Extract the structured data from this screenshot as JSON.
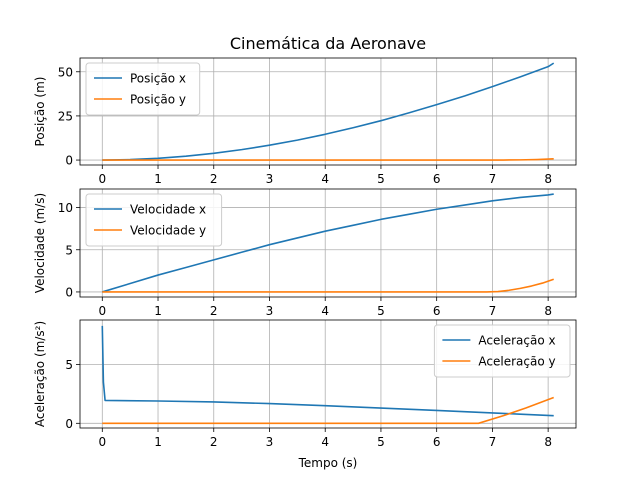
{
  "chart_data": {
    "type": "line",
    "title": "Cinemática da Aeronave",
    "xlabel": "Tempo (s)",
    "colors": {
      "x": "#1f77b4",
      "y": "#ff7f0e"
    },
    "grid": true,
    "panels": [
      {
        "ylabel": "Posição (m)",
        "xlim": [
          -0.4,
          8.5
        ],
        "ylim": [
          -2.8,
          57.8
        ],
        "xticks": [
          0,
          1,
          2,
          3,
          4,
          5,
          6,
          7,
          8
        ],
        "yticks": [
          0,
          25,
          50
        ],
        "legend_position": "top-left",
        "series": [
          {
            "name": "Posição x",
            "color_key": "x",
            "x": [
              0,
              0.5,
              1,
              1.5,
              2,
              2.5,
              3,
              3.5,
              4,
              4.5,
              5,
              5.5,
              6,
              6.5,
              7,
              7.5,
              8,
              8.1
            ],
            "y": [
              0,
              0.25,
              1.0,
              2.2,
              3.8,
              5.9,
              8.4,
              11.3,
              14.6,
              18.3,
              22.3,
              26.7,
              31.4,
              36.3,
              41.6,
              47.1,
              52.9,
              54.9
            ]
          },
          {
            "name": "Posição y",
            "color_key": "y",
            "x": [
              0,
              1,
              2,
              3,
              4,
              5,
              6,
              6.9,
              7.2,
              7.5,
              7.8,
              8.1
            ],
            "y": [
              0,
              0,
              0,
              0,
              0,
              0,
              0,
              0,
              0.02,
              0.1,
              0.3,
              0.7
            ]
          }
        ]
      },
      {
        "ylabel": "Velocidade (m/s)",
        "xlim": [
          -0.4,
          8.5
        ],
        "ylim": [
          -0.6,
          12.2
        ],
        "xticks": [
          0,
          1,
          2,
          3,
          4,
          5,
          6,
          7,
          8
        ],
        "yticks": [
          0,
          5,
          10
        ],
        "legend_position": "top-left",
        "series": [
          {
            "name": "Velocidade x",
            "color_key": "x",
            "x": [
              0,
              0.5,
              1,
              1.5,
              2,
              2.5,
              3,
              3.5,
              4,
              4.5,
              5,
              5.5,
              6,
              6.5,
              7,
              7.5,
              8,
              8.1
            ],
            "y": [
              0,
              1.0,
              2.0,
              2.9,
              3.8,
              4.7,
              5.6,
              6.4,
              7.2,
              7.9,
              8.6,
              9.2,
              9.8,
              10.3,
              10.8,
              11.2,
              11.5,
              11.6
            ]
          },
          {
            "name": "Velocidade y",
            "color_key": "y",
            "x": [
              0,
              1,
              2,
              3,
              4,
              5,
              6,
              6.9,
              7.1,
              7.3,
              7.5,
              7.7,
              7.9,
              8.1
            ],
            "y": [
              0,
              0,
              0,
              0,
              0,
              0,
              0,
              0,
              0.05,
              0.2,
              0.42,
              0.7,
              1.05,
              1.5
            ]
          }
        ]
      },
      {
        "ylabel": "Aceleração (m/s²)",
        "xlim": [
          -0.4,
          8.5
        ],
        "ylim": [
          -0.4,
          8.8
        ],
        "xticks": [
          0,
          1,
          2,
          3,
          4,
          5,
          6,
          7,
          8
        ],
        "yticks": [
          0,
          5
        ],
        "legend_position": "top-right",
        "series": [
          {
            "name": "Aceleração x",
            "color_key": "x",
            "x": [
              0,
              0.02,
              0.05,
              1,
              2,
              3,
              4,
              5,
              6,
              7,
              7.5,
              8,
              8.1
            ],
            "y": [
              8.3,
              3.5,
              1.95,
              1.9,
              1.82,
              1.68,
              1.5,
              1.3,
              1.1,
              0.88,
              0.78,
              0.67,
              0.65
            ]
          },
          {
            "name": "Aceleração y",
            "color_key": "y",
            "x": [
              0,
              1,
              2,
              3,
              4,
              5,
              6,
              6.75,
              7.2,
              7.6,
              8.1
            ],
            "y": [
              0,
              0,
              0,
              0,
              0,
              0,
              0,
              0,
              0.65,
              1.3,
              2.2
            ]
          }
        ]
      }
    ]
  }
}
